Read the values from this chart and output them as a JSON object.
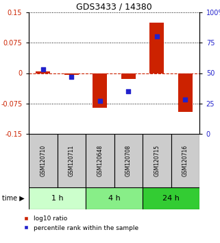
{
  "title": "GDS3433 / 14380",
  "samples": [
    "GSM120710",
    "GSM120711",
    "GSM120648",
    "GSM120708",
    "GSM120715",
    "GSM120716"
  ],
  "log10_ratio": [
    0.005,
    -0.005,
    -0.085,
    -0.015,
    0.125,
    -0.095
  ],
  "percentile_rank": [
    53,
    47,
    27,
    35,
    80,
    28
  ],
  "groups": [
    {
      "label": "1 h",
      "indices": [
        0,
        1
      ],
      "color": "#ccffcc"
    },
    {
      "label": "4 h",
      "indices": [
        2,
        3
      ],
      "color": "#88ee88"
    },
    {
      "label": "24 h",
      "indices": [
        4,
        5
      ],
      "color": "#33cc33"
    }
  ],
  "ylim_left": [
    -0.15,
    0.15
  ],
  "ylim_right": [
    0,
    100
  ],
  "yticks_left": [
    -0.15,
    -0.075,
    0,
    0.075,
    0.15
  ],
  "yticks_right": [
    0,
    25,
    50,
    75,
    100
  ],
  "ytick_labels_left": [
    "-0.15",
    "-0.075",
    "0",
    "0.075",
    "0.15"
  ],
  "ytick_labels_right": [
    "0",
    "25",
    "50",
    "75",
    "100%"
  ],
  "bar_color": "#cc2200",
  "dot_color": "#2222cc",
  "zero_line_color": "#cc2200",
  "grid_color": "#000000",
  "bar_width": 0.5,
  "dot_size": 18,
  "time_label": "time",
  "legend_bar_label": "log10 ratio",
  "legend_dot_label": "percentile rank within the sample",
  "sample_cell_color": "#cccccc",
  "title_fontsize": 9,
  "tick_fontsize": 7,
  "label_fontsize": 5.5,
  "group_fontsize": 8,
  "legend_fontsize": 6.5
}
